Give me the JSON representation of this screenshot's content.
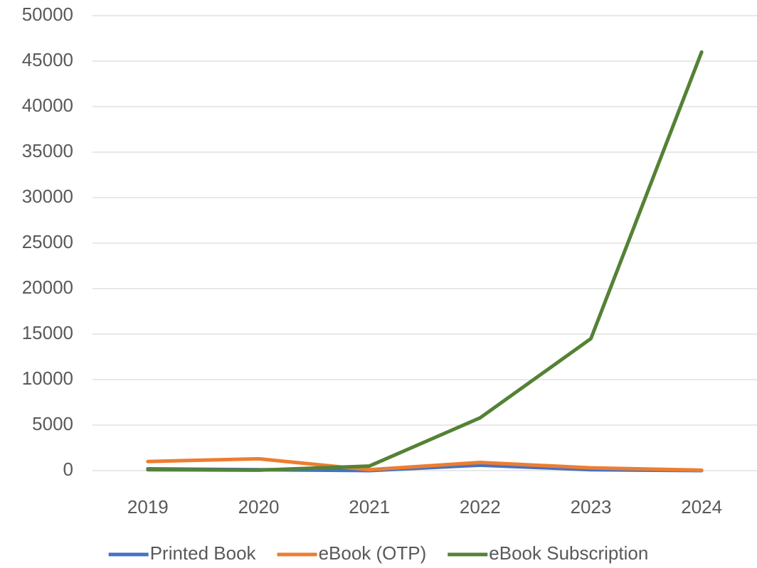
{
  "chart_data": {
    "type": "line",
    "categories": [
      "2019",
      "2020",
      "2021",
      "2022",
      "2023",
      "2024"
    ],
    "series": [
      {
        "name": "Printed Book",
        "color": "#4472c4",
        "values": [
          200,
          100,
          0,
          600,
          100,
          0
        ]
      },
      {
        "name": "eBook (OTP)",
        "color": "#ed7d31",
        "values": [
          1000,
          1300,
          100,
          900,
          300,
          50
        ]
      },
      {
        "name": "eBook Subscription",
        "color": "#548235",
        "values": [
          100,
          50,
          500,
          5800,
          14500,
          46000
        ]
      }
    ],
    "ylim": [
      0,
      50000
    ],
    "yticks": [
      0,
      5000,
      10000,
      15000,
      20000,
      25000,
      30000,
      35000,
      40000,
      45000,
      50000
    ],
    "grid": true,
    "legend": "bottom"
  }
}
